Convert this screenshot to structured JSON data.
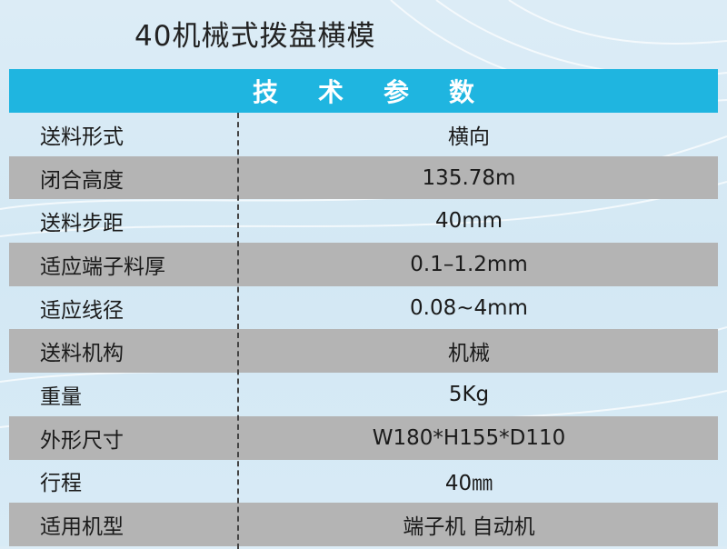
{
  "title": "40机械式拨盘横模",
  "header": [
    "技",
    "术",
    "参",
    "数"
  ],
  "rows": [
    {
      "label": "送料形式",
      "value": "横向"
    },
    {
      "label": "闭合高度",
      "value": "135.78m"
    },
    {
      "label": "送料步距",
      "value": "40mm"
    },
    {
      "label": "适应端子料厚",
      "value": "0.1–1.2mm"
    },
    {
      "label": "适应线径",
      "value": "0.08~4mm"
    },
    {
      "label": "送料机构",
      "value": "机械"
    },
    {
      "label": "重量",
      "value": "5Kg"
    },
    {
      "label": "外形尺寸",
      "value": "W180*H155*D110"
    },
    {
      "label": "行程",
      "value": "40㎜"
    },
    {
      "label": "适用机型",
      "value": "端子机  自动机"
    }
  ],
  "colors": {
    "header": "#1fb5e0",
    "gray_row": "#b4b4b4",
    "background": "#d6eaf5"
  }
}
